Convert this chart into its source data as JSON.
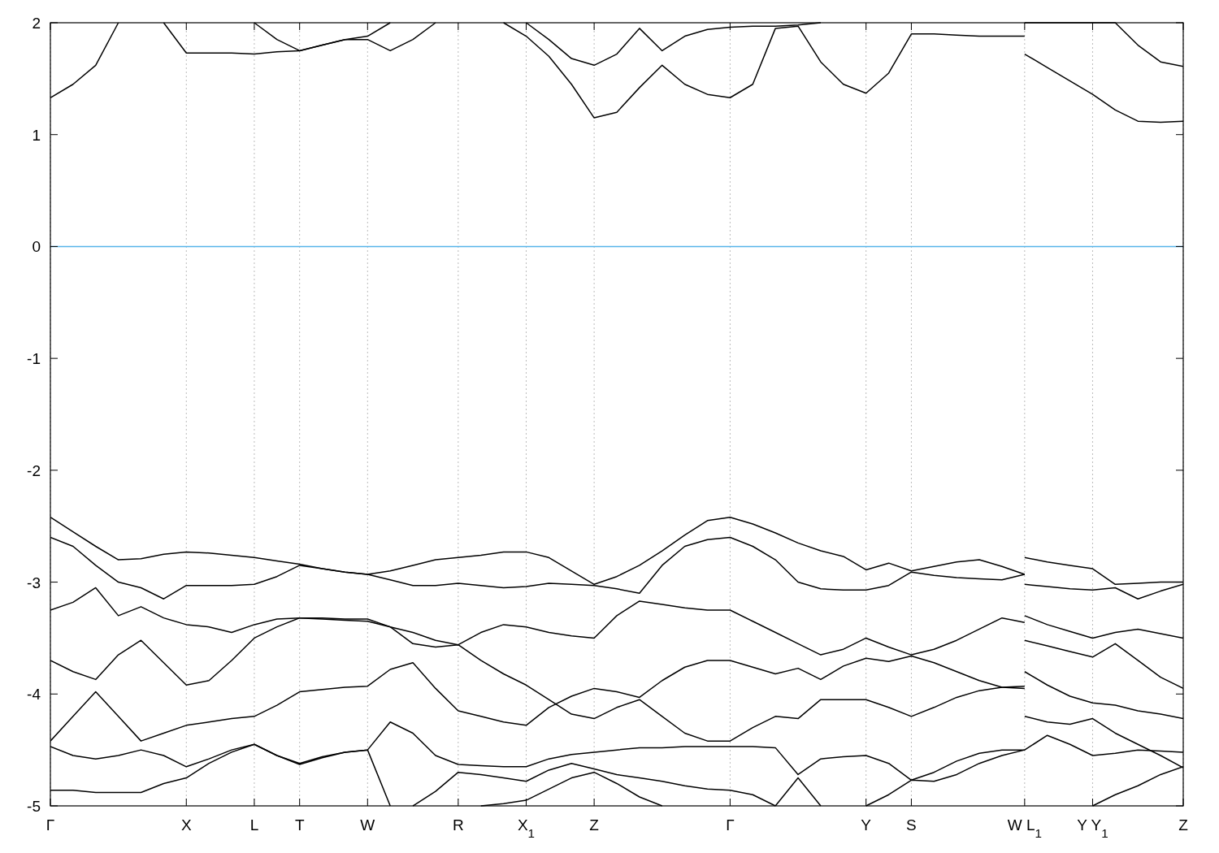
{
  "chart_data": {
    "type": "line",
    "ylim": [
      -5,
      2
    ],
    "yticks": [
      -5,
      -4,
      -3,
      -2,
      -1,
      0,
      1,
      2
    ],
    "categories": [
      "Γ",
      null,
      null,
      null,
      null,
      null,
      "X",
      null,
      null,
      "L",
      null,
      "T",
      null,
      null,
      "W",
      null,
      null,
      null,
      "R",
      null,
      null,
      "X$_{1}$",
      null,
      null,
      "Z",
      null,
      null,
      null,
      null,
      null,
      "Γ",
      null,
      null,
      null,
      null,
      null,
      "Y",
      null,
      "S",
      null,
      null,
      null,
      null,
      "W L$_{1}$",
      null,
      null,
      "Y Y$_{1}$",
      null,
      null,
      null,
      "Z"
    ],
    "grid": "x",
    "line_style": "solid",
    "ref_lines": [
      {
        "axis": "y",
        "value": 0,
        "color": "#56b4e9"
      }
    ],
    "series": [
      {
        "color": "#000000",
        "values": [
          -2.42,
          -2.55,
          -2.68,
          -2.8,
          -2.79,
          -2.75,
          -2.73,
          -2.74,
          -2.76,
          -2.78,
          -2.81,
          -2.84,
          -2.88,
          -2.91,
          -2.93,
          -2.9,
          -2.85,
          -2.8,
          -2.78,
          -2.76,
          -2.73,
          -2.73,
          -2.78,
          -2.9,
          -3.02,
          -2.95,
          -2.85,
          -2.72,
          -2.58,
          -2.45,
          -2.42,
          -2.48,
          -2.56,
          -2.65,
          -2.72,
          -2.77,
          -2.89,
          -2.83,
          -2.9,
          -2.86,
          -2.82,
          -2.8,
          -2.86,
          -2.93,
          null,
          null,
          null,
          null,
          null,
          null,
          null
        ]
      },
      {
        "color": "#000000",
        "values": [
          null,
          null,
          null,
          null,
          null,
          null,
          null,
          null,
          null,
          null,
          null,
          null,
          null,
          null,
          null,
          null,
          null,
          null,
          null,
          null,
          null,
          null,
          null,
          null,
          null,
          null,
          null,
          null,
          null,
          null,
          null,
          null,
          null,
          null,
          null,
          null,
          null,
          null,
          null,
          null,
          null,
          null,
          null,
          -2.78,
          -2.82,
          -2.85,
          -2.88,
          -3.02,
          -3.01,
          -3.0,
          -3.0
        ]
      },
      {
        "color": "#000000",
        "values": [
          -2.6,
          -2.68,
          -2.85,
          -3.0,
          -3.05,
          -3.15,
          -3.03,
          -3.03,
          -3.03,
          -3.02,
          -2.95,
          -2.85,
          -2.88,
          -2.91,
          -2.93,
          -2.98,
          -3.03,
          -3.03,
          -3.01,
          -3.03,
          -3.05,
          -3.04,
          -3.01,
          -3.02,
          -3.03,
          -3.06,
          -3.1,
          -2.85,
          -2.68,
          -2.62,
          -2.6,
          -2.68,
          -2.8,
          -3.0,
          -3.06,
          -3.07,
          -3.07,
          -3.03,
          -2.91,
          -2.94,
          -2.96,
          -2.97,
          -2.98,
          -2.93,
          null,
          null,
          null,
          null,
          null,
          null,
          null
        ]
      },
      {
        "color": "#000000",
        "values": [
          null,
          null,
          null,
          null,
          null,
          null,
          null,
          null,
          null,
          null,
          null,
          null,
          null,
          null,
          null,
          null,
          null,
          null,
          null,
          null,
          null,
          null,
          null,
          null,
          null,
          null,
          null,
          null,
          null,
          null,
          null,
          null,
          null,
          null,
          null,
          null,
          null,
          null,
          null,
          null,
          null,
          null,
          null,
          -3.02,
          -3.04,
          -3.06,
          -3.07,
          -3.05,
          -3.15,
          -3.08,
          -3.02
        ]
      },
      {
        "color": "#000000",
        "values": [
          -3.25,
          -3.18,
          -3.05,
          -3.3,
          -3.22,
          -3.32,
          -3.38,
          -3.4,
          -3.45,
          -3.38,
          -3.33,
          -3.32,
          -3.32,
          -3.33,
          -3.33,
          -3.4,
          -3.55,
          -3.58,
          -3.56,
          -3.7,
          -3.82,
          -3.92,
          -4.05,
          -4.18,
          -4.22,
          -4.12,
          -4.05,
          -4.2,
          -4.35,
          -4.42,
          -4.42,
          -4.3,
          -4.2,
          -4.22,
          -4.05,
          -4.05,
          -4.05,
          -4.12,
          -4.2,
          -4.12,
          -4.03,
          -3.97,
          -3.94,
          -3.93,
          null,
          null,
          null,
          null,
          null,
          null,
          null
        ]
      },
      {
        "color": "#000000",
        "values": [
          null,
          null,
          null,
          null,
          null,
          null,
          null,
          null,
          null,
          null,
          null,
          null,
          null,
          null,
          null,
          null,
          null,
          null,
          null,
          null,
          null,
          null,
          null,
          null,
          null,
          null,
          null,
          null,
          null,
          null,
          null,
          null,
          null,
          null,
          null,
          null,
          null,
          null,
          null,
          null,
          null,
          null,
          null,
          -3.3,
          -3.38,
          -3.44,
          -3.5,
          -3.45,
          -3.42,
          -3.46,
          -3.5
        ]
      },
      {
        "color": "#000000",
        "values": [
          -3.7,
          -3.8,
          -3.87,
          -3.65,
          -3.52,
          -3.72,
          -3.92,
          -3.88,
          -3.7,
          -3.5,
          -3.4,
          -3.32,
          -3.33,
          -3.34,
          -3.35,
          -3.4,
          -3.45,
          -3.52,
          -3.56,
          -3.45,
          -3.38,
          -3.4,
          -3.45,
          -3.48,
          -3.5,
          -3.3,
          -3.17,
          -3.2,
          -3.23,
          -3.25,
          -3.25,
          -3.35,
          -3.45,
          -3.55,
          -3.65,
          -3.6,
          -3.5,
          -3.58,
          -3.65,
          -3.6,
          -3.52,
          -3.42,
          -3.32,
          -3.36,
          null,
          null,
          null,
          null,
          null,
          null,
          null
        ]
      },
      {
        "color": "#000000",
        "values": [
          -4.42,
          -4.2,
          -3.98,
          -4.2,
          -4.42,
          -4.35,
          -4.28,
          -4.25,
          -4.22,
          -4.2,
          -4.1,
          -3.98,
          -3.96,
          -3.94,
          -3.93,
          -3.78,
          -3.72,
          -3.95,
          -4.15,
          -4.2,
          -4.25,
          -4.28,
          -4.12,
          -4.02,
          -3.95,
          -3.98,
          -4.03,
          -3.88,
          -3.76,
          -3.7,
          -3.7,
          -3.76,
          -3.82,
          -3.77,
          -3.87,
          -3.75,
          -3.68,
          -3.71,
          -3.66,
          -3.72,
          -3.8,
          -3.88,
          -3.94,
          -3.95,
          null,
          null,
          null,
          null,
          null,
          null,
          null
        ]
      },
      {
        "color": "#000000",
        "values": [
          -4.47,
          -4.55,
          -4.58,
          -4.55,
          -4.5,
          -4.55,
          -4.65,
          -4.58,
          -4.5,
          -4.45,
          -4.55,
          -4.63,
          -4.57,
          -4.52,
          -4.5,
          -4.25,
          -4.35,
          -4.55,
          -4.63,
          -4.64,
          -4.65,
          -4.65,
          -4.58,
          -4.54,
          -4.52,
          -4.5,
          -4.48,
          -4.48,
          -4.47,
          -4.47,
          -4.47,
          -4.47,
          -4.48,
          -4.72,
          -4.58,
          -4.56,
          -4.55,
          -4.62,
          -4.77,
          -4.7,
          -4.6,
          -4.53,
          -4.5,
          -4.5,
          -4.37,
          -4.45,
          -4.55,
          -4.53,
          -4.5,
          -4.51,
          -4.52
        ]
      },
      {
        "color": "#000000",
        "values": [
          -4.86,
          -4.86,
          -4.88,
          -4.88,
          -4.88,
          -4.8,
          -4.75,
          -4.62,
          -4.52,
          -4.45,
          -4.55,
          -4.62,
          -4.56,
          -4.52,
          -4.5,
          -5.0,
          null,
          null,
          null,
          null,
          null,
          null,
          null,
          null,
          null,
          null,
          null,
          null,
          null,
          null,
          null,
          null,
          null,
          null,
          null,
          null,
          null,
          null,
          null,
          null,
          null,
          null,
          null,
          null,
          null,
          null,
          null,
          null,
          null,
          null,
          null
        ]
      },
      {
        "color": "#000000",
        "values": [
          null,
          null,
          null,
          null,
          null,
          null,
          null,
          null,
          null,
          null,
          null,
          null,
          null,
          null,
          null,
          null,
          -5.0,
          -4.87,
          -4.7,
          -4.72,
          -4.75,
          -4.78,
          -4.68,
          -4.62,
          -4.67,
          -4.72,
          -4.75,
          -4.78,
          -4.82,
          -4.85,
          -4.86,
          -4.9,
          -5.0,
          null,
          null,
          null,
          null,
          null,
          null,
          null,
          null,
          null,
          null,
          null,
          null,
          null,
          null,
          null,
          null,
          null,
          null
        ]
      },
      {
        "color": "#000000",
        "values": [
          null,
          null,
          null,
          null,
          null,
          null,
          null,
          null,
          null,
          null,
          null,
          null,
          null,
          null,
          null,
          null,
          null,
          null,
          null,
          -5.0,
          -4.98,
          -4.95,
          -4.85,
          -4.75,
          -4.7,
          -4.8,
          -4.92,
          -5.0,
          null,
          null,
          null,
          null,
          null,
          null,
          null,
          null,
          null,
          null,
          null,
          null,
          null,
          null,
          null,
          null,
          null,
          null,
          null,
          null,
          null,
          null,
          null
        ]
      },
      {
        "color": "#000000",
        "values": [
          null,
          null,
          null,
          null,
          null,
          null,
          null,
          null,
          null,
          null,
          null,
          null,
          null,
          null,
          null,
          null,
          null,
          null,
          null,
          null,
          null,
          null,
          null,
          null,
          null,
          null,
          null,
          null,
          null,
          null,
          null,
          null,
          -5.0,
          -4.75,
          -5.0,
          null,
          null,
          null,
          null,
          null,
          null,
          null,
          null,
          null,
          null,
          null,
          null,
          null,
          null,
          null,
          null
        ]
      },
      {
        "color": "#000000",
        "values": [
          null,
          null,
          null,
          null,
          null,
          null,
          null,
          null,
          null,
          null,
          null,
          null,
          null,
          null,
          null,
          null,
          null,
          null,
          null,
          null,
          null,
          null,
          null,
          null,
          null,
          null,
          null,
          null,
          null,
          null,
          null,
          null,
          null,
          null,
          null,
          null,
          -5.0,
          -4.9,
          -4.77,
          -4.78,
          -4.72,
          -4.62,
          -4.55,
          -4.5,
          null,
          null,
          null,
          null,
          null,
          null,
          null
        ]
      },
      {
        "color": "#000000",
        "values": [
          null,
          null,
          null,
          null,
          null,
          null,
          null,
          null,
          null,
          null,
          null,
          null,
          null,
          null,
          null,
          null,
          null,
          null,
          null,
          null,
          null,
          null,
          null,
          null,
          null,
          null,
          null,
          null,
          null,
          null,
          null,
          null,
          null,
          null,
          null,
          null,
          null,
          null,
          null,
          null,
          null,
          null,
          null,
          null,
          null,
          null,
          -5.0,
          -4.9,
          -4.82,
          -4.72,
          -4.65
        ]
      },
      {
        "color": "#000000",
        "values": [
          null,
          null,
          null,
          null,
          null,
          null,
          null,
          null,
          null,
          null,
          null,
          null,
          null,
          null,
          null,
          null,
          null,
          null,
          null,
          null,
          null,
          null,
          null,
          null,
          null,
          null,
          null,
          null,
          null,
          null,
          null,
          null,
          null,
          null,
          null,
          null,
          null,
          null,
          null,
          null,
          null,
          null,
          null,
          -3.52,
          -3.57,
          -3.62,
          -3.67,
          -3.55,
          -3.7,
          -3.85,
          -3.95
        ]
      },
      {
        "color": "#000000",
        "values": [
          null,
          null,
          null,
          null,
          null,
          null,
          null,
          null,
          null,
          null,
          null,
          null,
          null,
          null,
          null,
          null,
          null,
          null,
          null,
          null,
          null,
          null,
          null,
          null,
          null,
          null,
          null,
          null,
          null,
          null,
          null,
          null,
          null,
          null,
          null,
          null,
          null,
          null,
          null,
          null,
          null,
          null,
          null,
          -3.8,
          -3.92,
          -4.02,
          -4.08,
          -4.1,
          -4.15,
          -4.18,
          -4.22
        ]
      },
      {
        "color": "#000000",
        "values": [
          null,
          null,
          null,
          null,
          null,
          null,
          null,
          null,
          null,
          null,
          null,
          null,
          null,
          null,
          null,
          null,
          null,
          null,
          null,
          null,
          null,
          null,
          null,
          null,
          null,
          null,
          null,
          null,
          null,
          null,
          null,
          null,
          null,
          null,
          null,
          null,
          null,
          null,
          null,
          null,
          null,
          null,
          null,
          -4.2,
          -4.25,
          -4.27,
          -4.22,
          -4.35,
          -4.45,
          -4.55,
          -4.66
        ]
      },
      {
        "color": "#000000",
        "values": [
          1.33,
          1.45,
          1.62,
          2.0,
          null,
          null,
          null,
          null,
          null,
          null,
          null,
          null,
          null,
          null,
          null,
          null,
          null,
          null,
          null,
          null,
          null,
          null,
          null,
          null,
          null,
          null,
          null,
          null,
          null,
          null,
          null,
          null,
          null,
          null,
          null,
          null,
          null,
          null,
          null,
          null,
          null,
          null,
          null,
          null,
          null,
          null,
          null,
          null,
          null,
          null,
          null
        ]
      },
      {
        "color": "#000000",
        "values": [
          null,
          null,
          null,
          null,
          null,
          2.0,
          1.73,
          1.73,
          1.73,
          1.72,
          1.74,
          1.75,
          1.8,
          1.85,
          1.88,
          2.0,
          null,
          null,
          null,
          null,
          null,
          null,
          null,
          null,
          null,
          null,
          null,
          null,
          null,
          null,
          null,
          null,
          null,
          null,
          null,
          null,
          null,
          null,
          null,
          null,
          null,
          null,
          null,
          null,
          null,
          null,
          null,
          null,
          null,
          null,
          null
        ]
      },
      {
        "color": "#000000",
        "values": [
          null,
          null,
          null,
          null,
          null,
          null,
          null,
          null,
          null,
          2.0,
          1.85,
          1.75,
          1.8,
          1.85,
          1.85,
          1.75,
          1.85,
          2.0,
          null,
          null,
          null,
          null,
          null,
          null,
          null,
          null,
          null,
          null,
          null,
          null,
          null,
          null,
          null,
          null,
          null,
          null,
          null,
          null,
          null,
          null,
          null,
          null,
          null,
          null,
          null,
          null,
          null,
          null,
          null,
          null,
          null
        ]
      },
      {
        "color": "#000000",
        "values": [
          null,
          null,
          null,
          null,
          null,
          null,
          null,
          null,
          null,
          null,
          null,
          null,
          null,
          null,
          null,
          null,
          null,
          null,
          null,
          null,
          2.0,
          1.88,
          1.7,
          1.45,
          1.15,
          1.2,
          1.42,
          1.62,
          1.45,
          1.36,
          1.33,
          1.45,
          1.95,
          1.97,
          1.65,
          1.45,
          1.37,
          1.55,
          1.9,
          1.9,
          1.89,
          1.88,
          1.88,
          1.88,
          null,
          null,
          null,
          null,
          null,
          null,
          null
        ]
      },
      {
        "color": "#000000",
        "values": [
          null,
          null,
          null,
          null,
          null,
          null,
          null,
          null,
          null,
          null,
          null,
          null,
          null,
          null,
          null,
          null,
          null,
          null,
          null,
          null,
          null,
          2.0,
          1.85,
          1.68,
          1.62,
          1.72,
          1.95,
          1.75,
          1.88,
          1.94,
          1.96,
          1.97,
          1.97,
          1.98,
          2.0,
          null,
          null,
          null,
          null,
          null,
          null,
          null,
          null,
          null,
          null,
          null,
          null,
          null,
          null,
          null,
          null
        ]
      },
      {
        "color": "#000000",
        "values": [
          null,
          null,
          null,
          null,
          null,
          null,
          null,
          null,
          null,
          null,
          null,
          null,
          null,
          null,
          null,
          null,
          null,
          null,
          null,
          null,
          null,
          null,
          null,
          null,
          null,
          null,
          null,
          null,
          null,
          null,
          null,
          null,
          null,
          null,
          null,
          null,
          null,
          null,
          null,
          null,
          null,
          null,
          null,
          1.72,
          1.6,
          1.48,
          1.36,
          1.22,
          1.12,
          1.11,
          1.12
        ]
      },
      {
        "color": "#000000",
        "values": [
          null,
          null,
          null,
          null,
          null,
          null,
          null,
          null,
          null,
          null,
          null,
          null,
          null,
          null,
          null,
          null,
          null,
          null,
          null,
          null,
          null,
          null,
          null,
          null,
          null,
          null,
          null,
          null,
          null,
          null,
          null,
          null,
          null,
          null,
          null,
          null,
          null,
          null,
          null,
          null,
          null,
          null,
          null,
          2.0,
          2.0,
          2.0,
          2.0,
          2.0,
          1.8,
          1.65,
          1.61
        ]
      }
    ]
  }
}
